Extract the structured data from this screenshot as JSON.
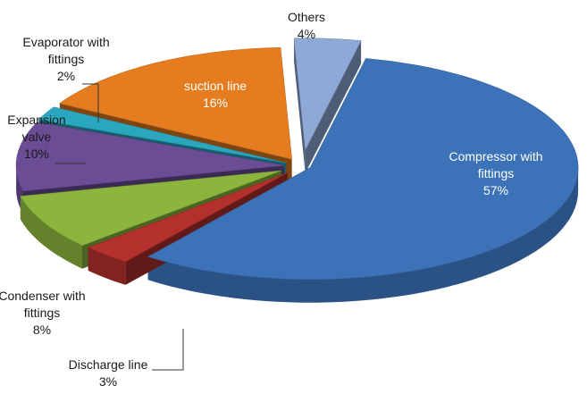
{
  "chart_data": {
    "type": "pie",
    "style": "3d-exploded",
    "title": "",
    "legend": "none",
    "slices": [
      {
        "name": "Compressor with fittings",
        "label_lines": [
          "Compressor with",
          "fittings"
        ],
        "value": 57,
        "value_label": "57%",
        "color": "#3c72b7"
      },
      {
        "name": "Discharge line",
        "label_lines": [
          "Discharge line"
        ],
        "value": 3,
        "value_label": "3%",
        "color": "#b3302c"
      },
      {
        "name": "Condenser with fittings",
        "label_lines": [
          "Condenser with",
          "fittings"
        ],
        "value": 8,
        "value_label": "8%",
        "color": "#8bb53c"
      },
      {
        "name": "Expansion valve",
        "label_lines": [
          "Expansion",
          "valve"
        ],
        "value": 10,
        "value_label": "10%",
        "color": "#6b4d96"
      },
      {
        "name": "Evaporator with fittings",
        "label_lines": [
          "Evaporator with",
          "fittings"
        ],
        "value": 2,
        "value_label": "2%",
        "color": "#2aa7bf"
      },
      {
        "name": "suction line",
        "label_lines": [
          "suction line"
        ],
        "value": 16,
        "value_label": "16%",
        "color": "#e57c1f"
      },
      {
        "name": "Others",
        "label_lines": [
          "Others"
        ],
        "value": 4,
        "value_label": "4%",
        "color": "#8ea9d6"
      }
    ]
  }
}
